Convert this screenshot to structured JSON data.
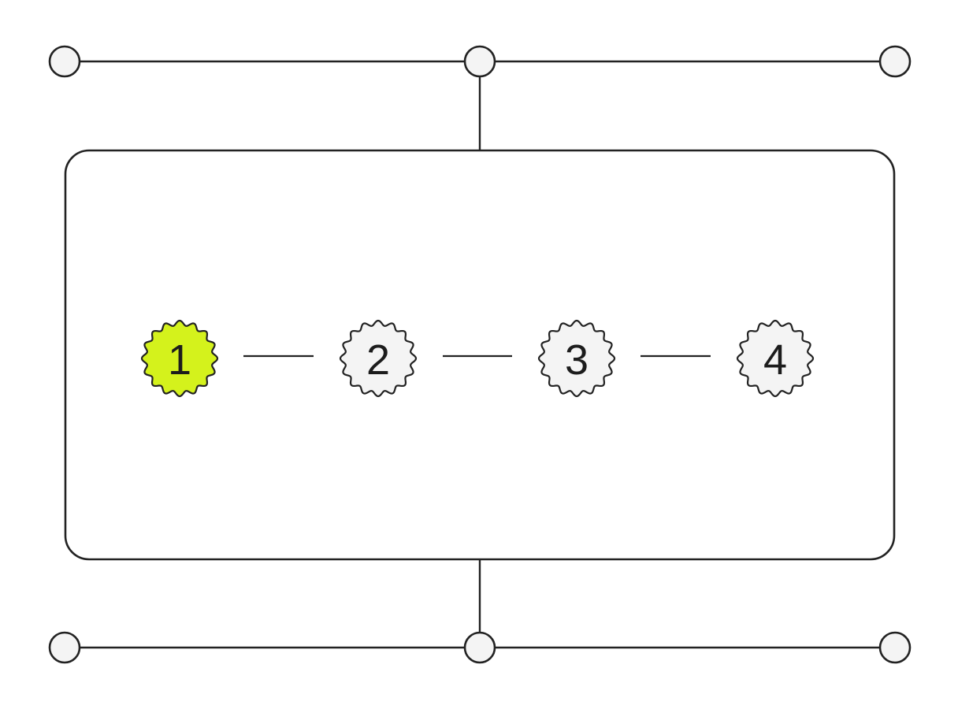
{
  "steps": [
    {
      "label": "1",
      "active": true
    },
    {
      "label": "2",
      "active": false
    },
    {
      "label": "3",
      "active": false
    },
    {
      "label": "4",
      "active": false
    }
  ],
  "colors": {
    "active_fill": "#d4f21c",
    "inactive_fill": "#f4f4f4",
    "stroke": "#222222"
  },
  "icons": {
    "step_badge": "gear-badge-icon",
    "junction": "circle-node-icon"
  }
}
